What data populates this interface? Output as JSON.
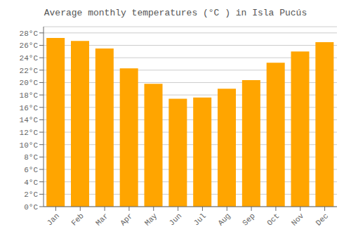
{
  "chart_data": {
    "type": "bar",
    "title": "Average monthly temperatures (°C ) in Isla Pucús",
    "categories": [
      "Jan",
      "Feb",
      "Mar",
      "Apr",
      "May",
      "Jun",
      "Jul",
      "Aug",
      "Sep",
      "Oct",
      "Nov",
      "Dec"
    ],
    "values": [
      27.2,
      26.7,
      25.5,
      22.3,
      19.8,
      17.4,
      17.6,
      19.0,
      20.4,
      23.2,
      25.0,
      26.5
    ],
    "color": "#FFA500",
    "ylim": [
      0,
      29
    ],
    "yticks": [
      {
        "value": 0,
        "label": "0°C"
      },
      {
        "value": 2,
        "label": "2°C"
      },
      {
        "value": 4,
        "label": "4°C"
      },
      {
        "value": 6,
        "label": "6°C"
      },
      {
        "value": 8,
        "label": "8°C"
      },
      {
        "value": 10,
        "label": "10°C"
      },
      {
        "value": 12,
        "label": "12°C"
      },
      {
        "value": 14,
        "label": "14°C"
      },
      {
        "value": 16,
        "label": "16°C"
      },
      {
        "value": 18,
        "label": "18°C"
      },
      {
        "value": 20,
        "label": "20°C"
      },
      {
        "value": 22,
        "label": "22°C"
      },
      {
        "value": 24,
        "label": "24°C"
      },
      {
        "value": 26,
        "label": "26°C"
      },
      {
        "value": 28,
        "label": "28°C"
      }
    ],
    "grid": true
  }
}
